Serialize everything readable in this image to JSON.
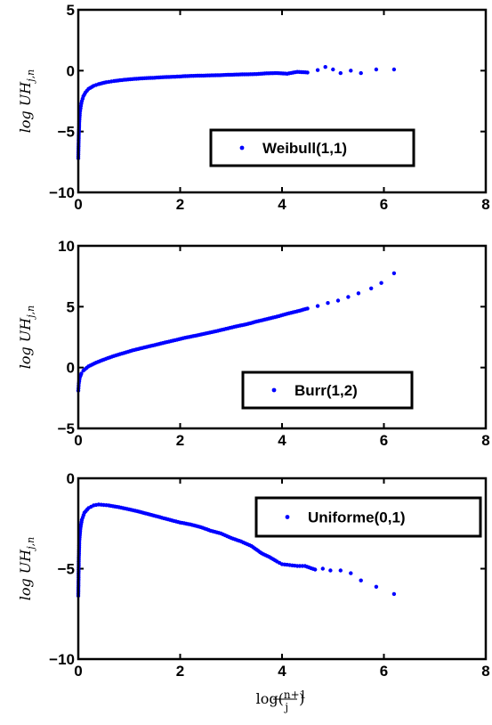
{
  "chart_data": [
    {
      "type": "scatter",
      "xlabel": "log((n+1)/j)",
      "ylabel": "log UH_{j,n}",
      "xlim": [
        0,
        8
      ],
      "ylim": [
        -10,
        5
      ],
      "xticks": [
        "0",
        "2",
        "4",
        "6",
        "8"
      ],
      "yticks": [
        "5",
        "0",
        "−5",
        "−10"
      ],
      "ytick_values": [
        5,
        0,
        -5,
        -10
      ],
      "legend": "top-right-inside, lower",
      "grid": false,
      "series": [
        {
          "name": "Weibull(1,1)",
          "color": "#0000ff",
          "points": [
            [
              0,
              -7.2
            ],
            [
              0.01,
              -5.2
            ],
            [
              0.02,
              -4.2
            ],
            [
              0.03,
              -3.5
            ],
            [
              0.05,
              -2.9
            ],
            [
              0.07,
              -2.5
            ],
            [
              0.1,
              -2.1
            ],
            [
              0.14,
              -1.8
            ],
            [
              0.2,
              -1.5
            ],
            [
              0.3,
              -1.25
            ],
            [
              0.4,
              -1.1
            ],
            [
              0.55,
              -0.95
            ],
            [
              0.7,
              -0.85
            ],
            [
              0.9,
              -0.75
            ],
            [
              1.1,
              -0.68
            ],
            [
              1.3,
              -0.62
            ],
            [
              1.5,
              -0.58
            ],
            [
              1.7,
              -0.53
            ],
            [
              1.9,
              -0.5
            ],
            [
              2.1,
              -0.45
            ],
            [
              2.3,
              -0.42
            ],
            [
              2.5,
              -0.4
            ],
            [
              2.7,
              -0.38
            ],
            [
              2.9,
              -0.35
            ],
            [
              3.1,
              -0.32
            ],
            [
              3.3,
              -0.3
            ],
            [
              3.5,
              -0.28
            ],
            [
              3.7,
              -0.22
            ],
            [
              3.9,
              -0.2
            ],
            [
              4.1,
              -0.25
            ],
            [
              4.3,
              -0.1
            ],
            [
              4.5,
              -0.15
            ],
            [
              4.7,
              0.05
            ],
            [
              4.85,
              0.3
            ],
            [
              5.0,
              0.1
            ],
            [
              5.15,
              -0.2
            ],
            [
              5.35,
              0.0
            ],
            [
              5.55,
              -0.2
            ],
            [
              5.85,
              0.1
            ],
            [
              6.2,
              0.1
            ]
          ]
        }
      ]
    },
    {
      "type": "scatter",
      "xlabel": "log((n+1)/j)",
      "ylabel": "log UH_{j,n}",
      "xlim": [
        0,
        8
      ],
      "ylim": [
        -5,
        10
      ],
      "xticks": [
        "0",
        "2",
        "4",
        "6",
        "8"
      ],
      "yticks": [
        "10",
        "5",
        "0",
        "−5"
      ],
      "ytick_values": [
        10,
        5,
        0,
        -5
      ],
      "legend": "bottom-right-inside",
      "grid": false,
      "series": [
        {
          "name": "Burr(1,2)",
          "color": "#0000ff",
          "points": [
            [
              0,
              -1.9
            ],
            [
              0.01,
              -1.3
            ],
            [
              0.03,
              -0.8
            ],
            [
              0.06,
              -0.5
            ],
            [
              0.1,
              -0.25
            ],
            [
              0.2,
              0.1
            ],
            [
              0.35,
              0.4
            ],
            [
              0.5,
              0.65
            ],
            [
              0.7,
              0.95
            ],
            [
              0.9,
              1.2
            ],
            [
              1.1,
              1.45
            ],
            [
              1.3,
              1.65
            ],
            [
              1.5,
              1.85
            ],
            [
              1.7,
              2.05
            ],
            [
              1.9,
              2.25
            ],
            [
              2.1,
              2.45
            ],
            [
              2.3,
              2.62
            ],
            [
              2.5,
              2.8
            ],
            [
              2.7,
              2.98
            ],
            [
              2.9,
              3.18
            ],
            [
              3.1,
              3.38
            ],
            [
              3.3,
              3.55
            ],
            [
              3.5,
              3.78
            ],
            [
              3.7,
              3.98
            ],
            [
              3.9,
              4.18
            ],
            [
              4.1,
              4.42
            ],
            [
              4.3,
              4.62
            ],
            [
              4.5,
              4.85
            ],
            [
              4.7,
              5.05
            ],
            [
              4.9,
              5.3
            ],
            [
              5.1,
              5.5
            ],
            [
              5.3,
              5.8
            ],
            [
              5.5,
              6.1
            ],
            [
              5.75,
              6.5
            ],
            [
              5.95,
              6.95
            ],
            [
              6.2,
              7.75
            ]
          ]
        }
      ]
    },
    {
      "type": "scatter",
      "xlabel": "log((n+1)/j)",
      "ylabel": "log UH_{j,n}",
      "xlim": [
        0,
        8
      ],
      "ylim": [
        -10,
        0
      ],
      "xticks": [
        "0",
        "2",
        "4",
        "6",
        "8"
      ],
      "yticks": [
        "0",
        "−5",
        "−10"
      ],
      "ytick_values": [
        0,
        -5,
        -10
      ],
      "legend": "top-right-inside",
      "grid": false,
      "series": [
        {
          "name": "Uniforme(0,1)",
          "color": "#0000ff",
          "points": [
            [
              0,
              -6.5
            ],
            [
              0.01,
              -4.5
            ],
            [
              0.02,
              -3.5
            ],
            [
              0.04,
              -2.8
            ],
            [
              0.07,
              -2.3
            ],
            [
              0.12,
              -1.9
            ],
            [
              0.2,
              -1.65
            ],
            [
              0.3,
              -1.5
            ],
            [
              0.4,
              -1.45
            ],
            [
              0.5,
              -1.48
            ],
            [
              0.6,
              -1.5
            ],
            [
              0.8,
              -1.6
            ],
            [
              1.0,
              -1.72
            ],
            [
              1.2,
              -1.85
            ],
            [
              1.4,
              -2.0
            ],
            [
              1.6,
              -2.15
            ],
            [
              1.8,
              -2.3
            ],
            [
              2.0,
              -2.45
            ],
            [
              2.2,
              -2.55
            ],
            [
              2.4,
              -2.7
            ],
            [
              2.6,
              -2.9
            ],
            [
              2.8,
              -3.05
            ],
            [
              3.0,
              -3.3
            ],
            [
              3.2,
              -3.5
            ],
            [
              3.4,
              -3.75
            ],
            [
              3.5,
              -3.95
            ],
            [
              3.6,
              -4.15
            ],
            [
              3.75,
              -4.35
            ],
            [
              3.9,
              -4.6
            ],
            [
              4.0,
              -4.75
            ],
            [
              4.15,
              -4.8
            ],
            [
              4.3,
              -4.85
            ],
            [
              4.45,
              -4.85
            ],
            [
              4.65,
              -5.05
            ],
            [
              4.8,
              -5.0
            ],
            [
              4.95,
              -5.1
            ],
            [
              5.15,
              -5.1
            ],
            [
              5.35,
              -5.25
            ],
            [
              5.55,
              -5.65
            ],
            [
              5.85,
              -6.0
            ],
            [
              6.2,
              -6.4
            ]
          ]
        }
      ]
    }
  ]
}
